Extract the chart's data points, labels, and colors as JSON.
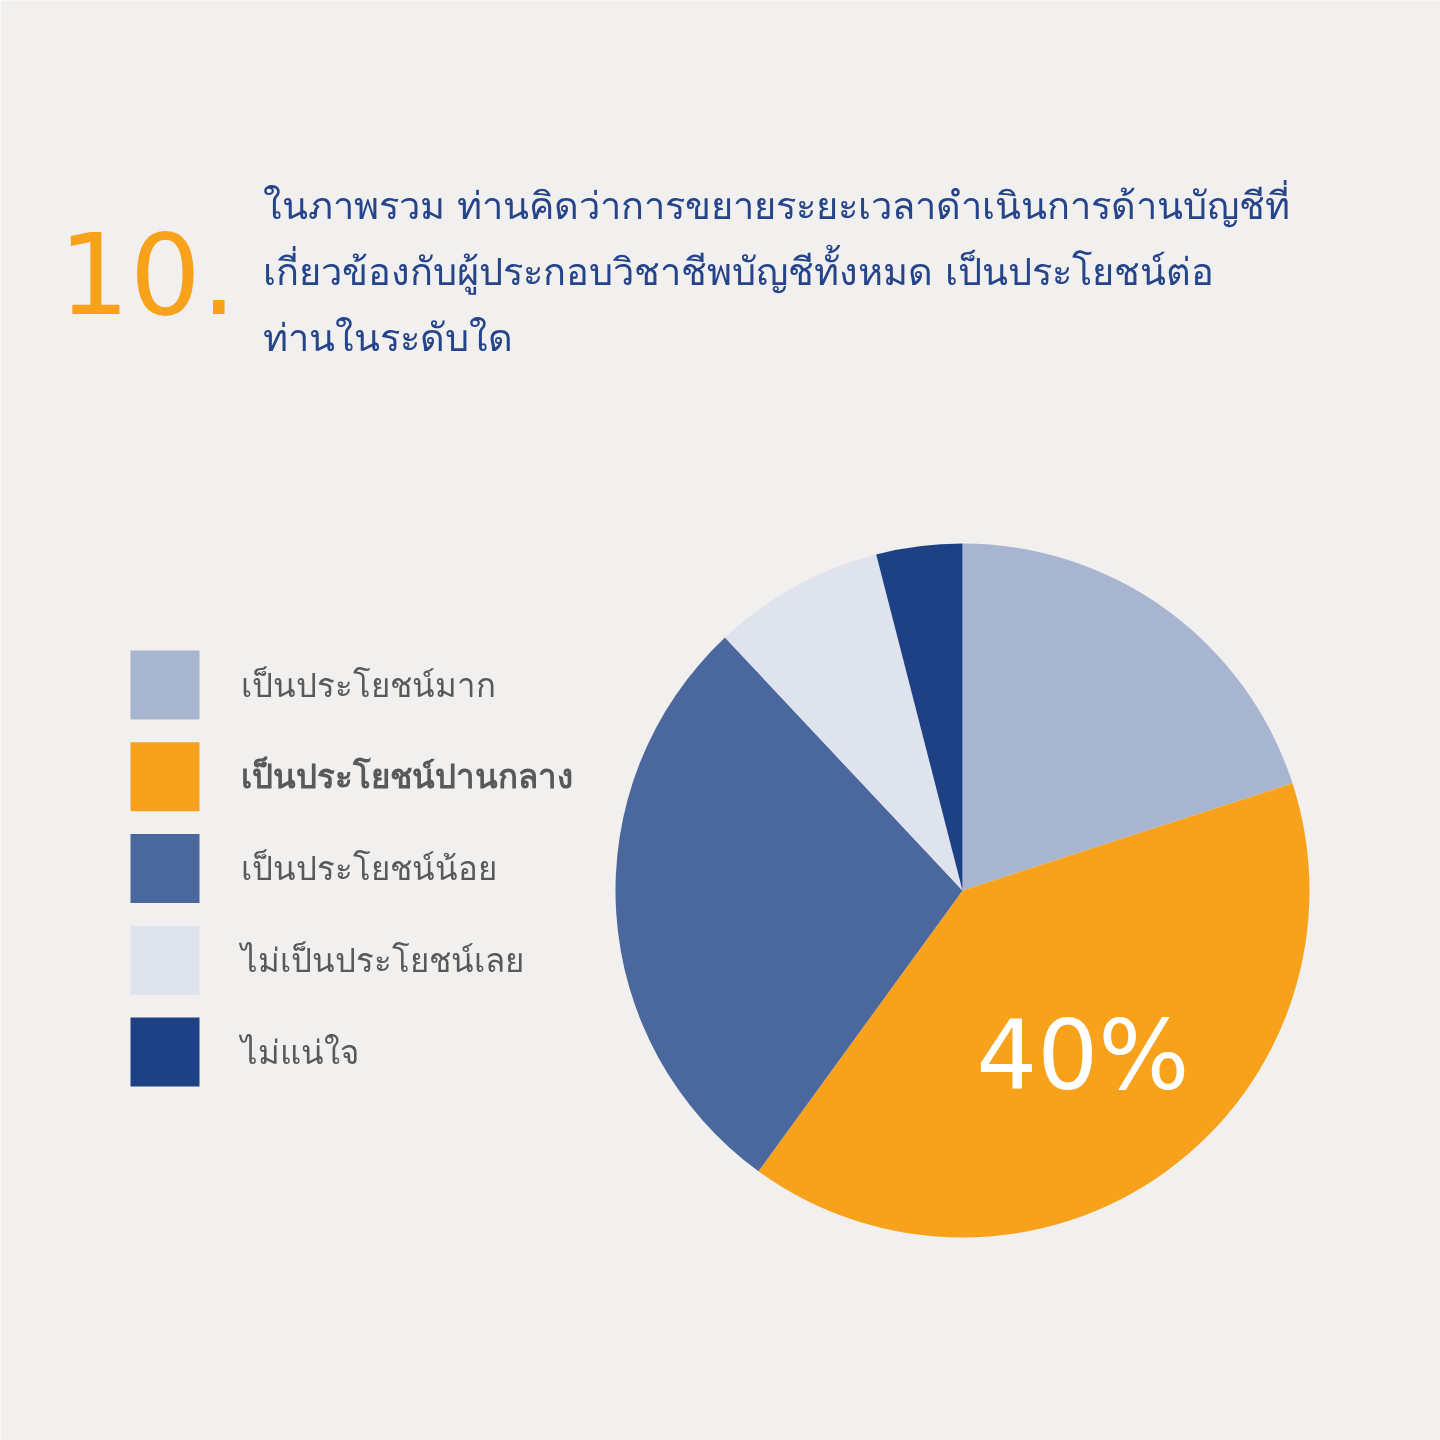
{
  "chart_data": {
    "type": "pie",
    "title": "ในภาพรวม ท่านคิดว่าการขยายระยะเวลาดำเนินการด้านบัญชีที่\nเกี่ยวข้องกับผู้ประกอบวิชาชีพบัญชีทั้งหมด เป็นประโยชน์ต่อ\nท่านในระดับใด",
    "annotations": [
      "10."
    ],
    "categories": [
      "เป็นประโยชน์มาก",
      "เป็นประโยชน์ปานกลาง",
      "เป็นประโยชน์น้อย",
      "ไม่เป็นประโยชน์เลย",
      "ไม่แน่ใจ"
    ],
    "values": [
      20,
      40,
      28,
      8,
      4
    ],
    "value_labels": [
      null,
      "40%",
      null,
      null,
      null
    ],
    "colors": [
      "#a7b5d0",
      "#f8a21c",
      "#4b689e",
      "#dfe3ee",
      "#1e4185"
    ],
    "legend": "left"
  }
}
